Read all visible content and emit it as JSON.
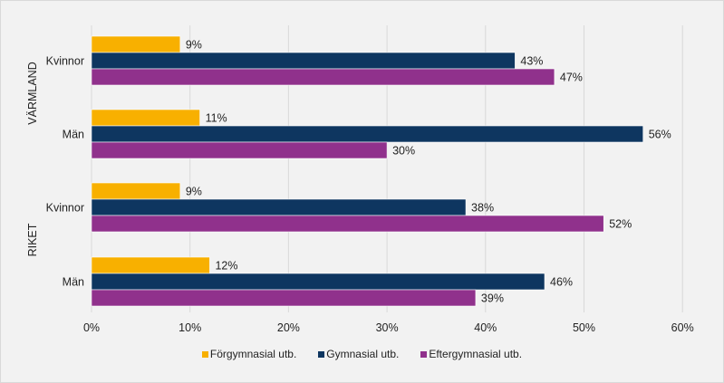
{
  "chart_data": {
    "type": "bar",
    "orientation": "horizontal",
    "title": "",
    "xlabel": "",
    "ylabel": "",
    "xlim": [
      0,
      60
    ],
    "x_ticks": [
      "0%",
      "10%",
      "20%",
      "30%",
      "40%",
      "50%",
      "60%"
    ],
    "x_tick_values": [
      0,
      10,
      20,
      30,
      40,
      50,
      60
    ],
    "grid": true,
    "legend_position": "bottom",
    "groups": [
      {
        "name": "VÄRMLAND",
        "categories": [
          "Kvinnor",
          "Män"
        ]
      },
      {
        "name": "RIKET",
        "categories": [
          "Kvinnor",
          "Män"
        ]
      }
    ],
    "categories": [
      "VÄRMLAND Kvinnor",
      "VÄRMLAND Män",
      "RIKET Kvinnor",
      "RIKET Män"
    ],
    "category_labels": [
      "Kvinnor",
      "Män",
      "Kvinnor",
      "Män"
    ],
    "series": [
      {
        "name": "Förgymnasial utb.",
        "color": "#f8b000",
        "values": [
          9,
          11,
          9,
          12
        ],
        "labels": [
          "9%",
          "11%",
          "9%",
          "12%"
        ]
      },
      {
        "name": "Gymnasial utb.",
        "color": "#0e3660",
        "values": [
          43,
          56,
          38,
          46
        ],
        "labels": [
          "43%",
          "56%",
          "38%",
          "46%"
        ]
      },
      {
        "name": "Eftergymnasial utb.",
        "color": "#90318c",
        "values": [
          47,
          30,
          52,
          39
        ],
        "labels": [
          "47%",
          "30%",
          "52%",
          "39%"
        ]
      }
    ]
  }
}
